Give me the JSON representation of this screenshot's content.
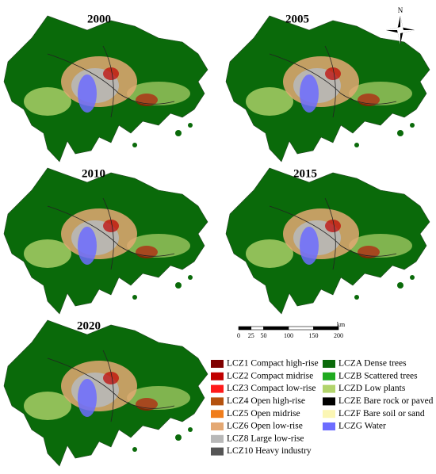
{
  "panels": [
    {
      "label": "2000"
    },
    {
      "label": "2005"
    },
    {
      "label": "2010"
    },
    {
      "label": "2015"
    },
    {
      "label": "2020"
    }
  ],
  "compass": "N",
  "scale_bar": {
    "labels": [
      "0",
      "25",
      "50",
      "100",
      "150",
      "200"
    ],
    "unit": "km"
  },
  "legend": {
    "items": [
      {
        "name": "LCZ1 Compact high-rise",
        "color": "#7f0000"
      },
      {
        "name": "LCZ2 Compact midrise",
        "color": "#c00000"
      },
      {
        "name": "LCZ3 Compact low-rise",
        "color": "#ff1a1a"
      },
      {
        "name": "LCZ4 Open high-rise",
        "color": "#b5520f"
      },
      {
        "name": "LCZ5 Open midrise",
        "color": "#f07d1c"
      },
      {
        "name": "LCZ6 Open low-rise",
        "color": "#e4a873"
      },
      {
        "name": "LCZ8 Large low-rise",
        "color": "#b8b8b8"
      },
      {
        "name": "LCZ10 Heavy industry",
        "color": "#555555"
      },
      {
        "name": "LCZA Dense trees",
        "color": "#0a6a0a"
      },
      {
        "name": "LCZB Scattered trees",
        "color": "#1faa1f"
      },
      {
        "name": "LCZD Low plants",
        "color": "#b2d46c"
      },
      {
        "name": "LCZE Bare rock or paved",
        "color": "#000000"
      },
      {
        "name": "LCZF Bare soil or sand",
        "color": "#fbf6b4"
      },
      {
        "name": "LCZG Water",
        "color": "#6c6cff"
      }
    ]
  }
}
